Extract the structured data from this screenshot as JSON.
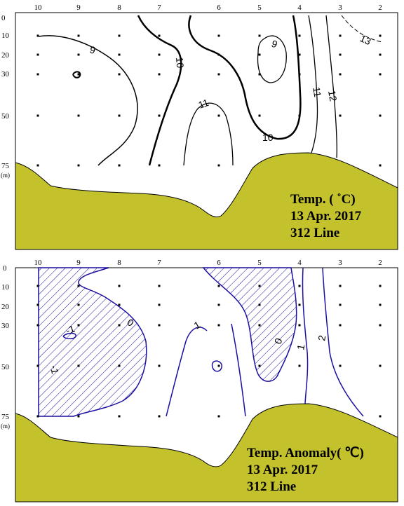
{
  "chart_data": [
    {
      "type": "contour",
      "title_lines": [
        "Temp. ( ˚C)",
        "13 Apr. 2017",
        "312 Line"
      ],
      "stations": [
        "10",
        "9",
        "8",
        "7",
        "6",
        "5",
        "4",
        "3",
        "2"
      ],
      "depths": [
        "0",
        "10",
        "20",
        "30",
        "50",
        "75"
      ],
      "depth_unit": "(m)",
      "contour_labels": [
        "9",
        "9",
        "10",
        "10",
        "11",
        "11",
        "12",
        "13"
      ],
      "colors": {
        "seabed": "#c3c22c",
        "contour": "#000000"
      }
    },
    {
      "type": "contour",
      "title_lines": [
        "Temp. Anomaly( ℃)",
        "13 Apr. 2017",
        "312 Line"
      ],
      "stations": [
        "10",
        "9",
        "8",
        "7",
        "6",
        "5",
        "4",
        "3",
        "2"
      ],
      "depths": [
        "0",
        "10",
        "20",
        "30",
        "50",
        "75"
      ],
      "depth_unit": "(m)",
      "contour_labels": [
        "-1",
        "-1",
        "0",
        "0",
        "1",
        "1",
        "2"
      ],
      "colors": {
        "seabed": "#c3c22c",
        "contour": "#1a0fa0",
        "hatch": "#1a0fa0"
      }
    }
  ]
}
